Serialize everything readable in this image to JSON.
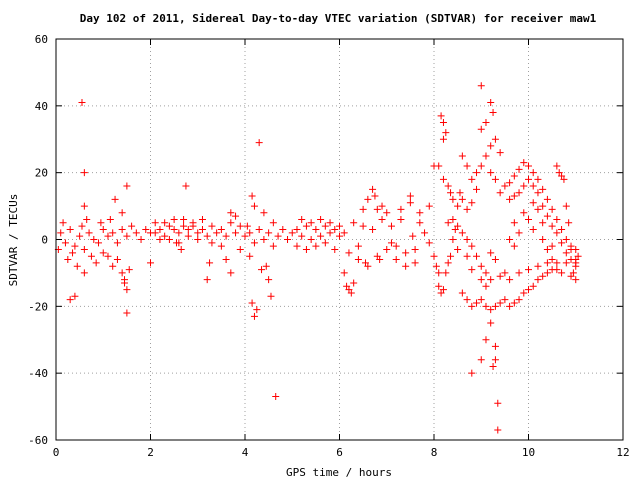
{
  "chart_data": {
    "type": "scatter",
    "title": "Day 102 of 2011, Sidereal Day-to-day VTEC variation (SDTVAR) for receiver maw1",
    "xlabel": "GPS time / hours",
    "ylabel": "SDTVAR / TECUs",
    "xlim": [
      0,
      12
    ],
    "ylim": [
      -60,
      60
    ],
    "xticks": [
      "0",
      "2",
      "4",
      "6",
      "8",
      "10",
      "12"
    ],
    "yticks": [
      "60",
      "40",
      "20",
      "0",
      "-20",
      "-40",
      "-60"
    ],
    "grid": true,
    "marker": "+",
    "color": "#ff0000",
    "points": [
      [
        0.1,
        2
      ],
      [
        0.2,
        -1
      ],
      [
        0.3,
        3
      ],
      [
        0.4,
        -2
      ],
      [
        0.5,
        1
      ],
      [
        0.6,
        -3
      ],
      [
        0.7,
        2
      ],
      [
        0.8,
        0
      ],
      [
        0.9,
        -1
      ],
      [
        1.0,
        3
      ],
      [
        0.15,
        5
      ],
      [
        0.35,
        -4
      ],
      [
        0.55,
        4
      ],
      [
        0.75,
        -5
      ],
      [
        0.95,
        5
      ],
      [
        0.25,
        -6
      ],
      [
        0.45,
        -8
      ],
      [
        0.65,
        6
      ],
      [
        0.85,
        -7
      ],
      [
        0.05,
        -3
      ],
      [
        0.3,
        -18
      ],
      [
        0.4,
        -17
      ],
      [
        0.55,
        41
      ],
      [
        0.6,
        20
      ],
      [
        0.6,
        10
      ],
      [
        0.6,
        -10
      ],
      [
        1.1,
        1
      ],
      [
        1.2,
        2
      ],
      [
        1.3,
        -1
      ],
      [
        1.4,
        3
      ],
      [
        1.5,
        1
      ],
      [
        1.6,
        4
      ],
      [
        1.7,
        2
      ],
      [
        1.8,
        0
      ],
      [
        1.9,
        3
      ],
      [
        2.0,
        2
      ],
      [
        1.1,
        -5
      ],
      [
        1.2,
        -8
      ],
      [
        1.3,
        -6
      ],
      [
        1.4,
        -10
      ],
      [
        1.45,
        -12
      ],
      [
        1.5,
        -15
      ],
      [
        1.5,
        -22
      ],
      [
        1.45,
        -13
      ],
      [
        1.5,
        16
      ],
      [
        1.25,
        12
      ],
      [
        1.4,
        8
      ],
      [
        1.55,
        -9
      ],
      [
        1.0,
        -4
      ],
      [
        1.15,
        6
      ],
      [
        2.1,
        2
      ],
      [
        2.2,
        3
      ],
      [
        2.3,
        1
      ],
      [
        2.4,
        4
      ],
      [
        2.5,
        3
      ],
      [
        2.6,
        2
      ],
      [
        2.7,
        4
      ],
      [
        2.8,
        3
      ],
      [
        2.9,
        5
      ],
      [
        3.0,
        2
      ],
      [
        2.1,
        5
      ],
      [
        2.3,
        5
      ],
      [
        2.5,
        6
      ],
      [
        2.7,
        6
      ],
      [
        2.9,
        4
      ],
      [
        2.2,
        0
      ],
      [
        2.4,
        0
      ],
      [
        2.6,
        -1
      ],
      [
        2.8,
        1
      ],
      [
        3.0,
        0
      ],
      [
        2.75,
        16
      ],
      [
        2.0,
        -7
      ],
      [
        2.65,
        -3
      ],
      [
        2.55,
        -1
      ],
      [
        3.1,
        3
      ],
      [
        3.2,
        1
      ],
      [
        3.3,
        4
      ],
      [
        3.4,
        2
      ],
      [
        3.5,
        3
      ],
      [
        3.6,
        1
      ],
      [
        3.7,
        5
      ],
      [
        3.8,
        2
      ],
      [
        3.9,
        4
      ],
      [
        4.0,
        1
      ],
      [
        3.1,
        6
      ],
      [
        3.3,
        -1
      ],
      [
        3.5,
        -2
      ],
      [
        3.7,
        8
      ],
      [
        3.9,
        -3
      ],
      [
        3.2,
        -12
      ],
      [
        3.25,
        -7
      ],
      [
        3.6,
        -6
      ],
      [
        3.7,
        -10
      ],
      [
        3.8,
        7
      ],
      [
        4.1,
        2
      ],
      [
        4.2,
        -1
      ],
      [
        4.3,
        3
      ],
      [
        4.4,
        0
      ],
      [
        4.5,
        2
      ],
      [
        4.6,
        -2
      ],
      [
        4.7,
        1
      ],
      [
        4.8,
        3
      ],
      [
        4.9,
        0
      ],
      [
        5.0,
        2
      ],
      [
        4.1,
        -5
      ],
      [
        4.15,
        -19
      ],
      [
        4.2,
        -23
      ],
      [
        4.25,
        -21
      ],
      [
        4.3,
        29
      ],
      [
        4.15,
        13
      ],
      [
        4.2,
        10
      ],
      [
        4.4,
        8
      ],
      [
        4.5,
        -12
      ],
      [
        4.55,
        -17
      ],
      [
        4.65,
        -47
      ],
      [
        4.45,
        -8
      ],
      [
        4.6,
        5
      ],
      [
        4.35,
        -9
      ],
      [
        4.05,
        4
      ],
      [
        5.1,
        3
      ],
      [
        5.2,
        1
      ],
      [
        5.3,
        4
      ],
      [
        5.4,
        0
      ],
      [
        5.5,
        3
      ],
      [
        5.6,
        1
      ],
      [
        5.7,
        4
      ],
      [
        5.8,
        2
      ],
      [
        5.9,
        3
      ],
      [
        6.0,
        1
      ],
      [
        5.1,
        -2
      ],
      [
        5.3,
        -3
      ],
      [
        5.5,
        -2
      ],
      [
        5.7,
        -1
      ],
      [
        5.9,
        -3
      ],
      [
        5.2,
        6
      ],
      [
        5.4,
        5
      ],
      [
        5.6,
        6
      ],
      [
        5.8,
        5
      ],
      [
        6.0,
        4
      ],
      [
        6.1,
        2
      ],
      [
        6.2,
        -4
      ],
      [
        6.3,
        5
      ],
      [
        6.4,
        -6
      ],
      [
        6.5,
        4
      ],
      [
        6.6,
        -8
      ],
      [
        6.7,
        3
      ],
      [
        6.8,
        -5
      ],
      [
        6.9,
        6
      ],
      [
        7.0,
        -3
      ],
      [
        6.1,
        -10
      ],
      [
        6.15,
        -14
      ],
      [
        6.2,
        -15
      ],
      [
        6.3,
        -13
      ],
      [
        6.25,
        -16
      ],
      [
        6.5,
        9
      ],
      [
        6.6,
        12
      ],
      [
        6.7,
        15
      ],
      [
        6.75,
        13
      ],
      [
        6.8,
        9
      ],
      [
        6.9,
        10
      ],
      [
        7.0,
        8
      ],
      [
        6.4,
        -2
      ],
      [
        6.55,
        -7
      ],
      [
        6.85,
        -6
      ],
      [
        7.1,
        4
      ],
      [
        7.2,
        -2
      ],
      [
        7.3,
        9
      ],
      [
        7.4,
        -4
      ],
      [
        7.5,
        11
      ],
      [
        7.6,
        -3
      ],
      [
        7.7,
        8
      ],
      [
        7.8,
        2
      ],
      [
        7.9,
        10
      ],
      [
        7.5,
        13
      ],
      [
        7.2,
        -6
      ],
      [
        7.4,
        -8
      ],
      [
        7.6,
        -7
      ],
      [
        7.3,
        6
      ],
      [
        7.7,
        5
      ],
      [
        7.1,
        -1
      ],
      [
        7.9,
        -1
      ],
      [
        7.55,
        1
      ],
      [
        8.0,
        -5
      ],
      [
        8.05,
        -8
      ],
      [
        8.1,
        -10
      ],
      [
        8.0,
        22
      ],
      [
        8.1,
        22
      ],
      [
        8.15,
        37
      ],
      [
        8.2,
        35
      ],
      [
        8.25,
        32
      ],
      [
        8.2,
        30
      ],
      [
        8.1,
        -14
      ],
      [
        8.15,
        -16
      ],
      [
        8.2,
        -15
      ],
      [
        8.25,
        -10
      ],
      [
        8.3,
        -7
      ],
      [
        8.35,
        -5
      ],
      [
        8.4,
        0
      ],
      [
        8.45,
        3
      ],
      [
        8.5,
        -3
      ],
      [
        8.2,
        18
      ],
      [
        8.3,
        16
      ],
      [
        8.35,
        14
      ],
      [
        8.4,
        12
      ],
      [
        8.5,
        10
      ],
      [
        8.55,
        14
      ],
      [
        8.6,
        12
      ],
      [
        8.7,
        9
      ],
      [
        8.8,
        11
      ],
      [
        8.9,
        15
      ],
      [
        8.3,
        5
      ],
      [
        8.4,
        6
      ],
      [
        8.5,
        4
      ],
      [
        8.6,
        2
      ],
      [
        8.7,
        0
      ],
      [
        8.8,
        -2
      ],
      [
        8.9,
        -5
      ],
      [
        9.0,
        -8
      ],
      [
        9.1,
        -10
      ],
      [
        9.2,
        -12
      ],
      [
        8.6,
        -16
      ],
      [
        8.7,
        -18
      ],
      [
        8.8,
        -20
      ],
      [
        8.9,
        -19
      ],
      [
        9.0,
        -18
      ],
      [
        9.1,
        -20
      ],
      [
        9.2,
        -21
      ],
      [
        9.3,
        -20
      ],
      [
        9.4,
        -19
      ],
      [
        9.5,
        -18
      ],
      [
        8.6,
        25
      ],
      [
        8.7,
        22
      ],
      [
        8.8,
        18
      ],
      [
        8.9,
        20
      ],
      [
        9.0,
        22
      ],
      [
        9.1,
        25
      ],
      [
        9.2,
        20
      ],
      [
        9.3,
        18
      ],
      [
        9.4,
        14
      ],
      [
        9.5,
        16
      ],
      [
        8.7,
        -5
      ],
      [
        8.8,
        -9
      ],
      [
        9.0,
        -12
      ],
      [
        9.1,
        -14
      ],
      [
        9.2,
        -4
      ],
      [
        9.3,
        -6
      ],
      [
        9.4,
        -11
      ],
      [
        9.5,
        -10
      ],
      [
        8.8,
        -40
      ],
      [
        9.0,
        -36
      ],
      [
        9.1,
        -30
      ],
      [
        9.2,
        -25
      ],
      [
        9.3,
        -32
      ],
      [
        9.35,
        -49
      ],
      [
        9.35,
        -57
      ],
      [
        9.3,
        -36
      ],
      [
        9.25,
        -38
      ],
      [
        9.0,
        46
      ],
      [
        9.2,
        41
      ],
      [
        9.25,
        38
      ],
      [
        9.1,
        35
      ],
      [
        9.0,
        33
      ],
      [
        9.2,
        28
      ],
      [
        9.3,
        30
      ],
      [
        9.4,
        26
      ],
      [
        9.6,
        17
      ],
      [
        9.7,
        19
      ],
      [
        9.8,
        21
      ],
      [
        9.9,
        23
      ],
      [
        10.0,
        22
      ],
      [
        10.1,
        20
      ],
      [
        10.2,
        18
      ],
      [
        10.3,
        15
      ],
      [
        10.4,
        12
      ],
      [
        10.5,
        9
      ],
      [
        9.6,
        12
      ],
      [
        9.7,
        13
      ],
      [
        9.8,
        14
      ],
      [
        9.9,
        16
      ],
      [
        10.0,
        18
      ],
      [
        10.1,
        16
      ],
      [
        10.2,
        14
      ],
      [
        10.3,
        10
      ],
      [
        10.4,
        7
      ],
      [
        10.5,
        4
      ],
      [
        10.6,
        6
      ],
      [
        10.7,
        3
      ],
      [
        10.8,
        0
      ],
      [
        10.9,
        -3
      ],
      [
        11.0,
        -6
      ],
      [
        10.6,
        2
      ],
      [
        10.7,
        -1
      ],
      [
        10.8,
        -4
      ],
      [
        10.9,
        -6
      ],
      [
        11.0,
        -8
      ],
      [
        9.6,
        -20
      ],
      [
        9.7,
        -19
      ],
      [
        9.8,
        -18
      ],
      [
        9.9,
        -16
      ],
      [
        10.0,
        -15
      ],
      [
        10.1,
        -14
      ],
      [
        10.2,
        -12
      ],
      [
        10.3,
        -11
      ],
      [
        10.4,
        -10
      ],
      [
        10.5,
        -9
      ],
      [
        9.6,
        -12
      ],
      [
        9.8,
        -10
      ],
      [
        10.0,
        -9
      ],
      [
        10.2,
        -8
      ],
      [
        10.4,
        -7
      ],
      [
        10.6,
        -7
      ],
      [
        10.8,
        -7
      ],
      [
        11.0,
        -7
      ],
      [
        9.7,
        5
      ],
      [
        9.9,
        8
      ],
      [
        10.0,
        6
      ],
      [
        10.1,
        11
      ],
      [
        10.2,
        9
      ],
      [
        10.3,
        5
      ],
      [
        10.4,
        -3
      ],
      [
        10.5,
        -6
      ],
      [
        10.6,
        -9
      ],
      [
        10.7,
        -10
      ],
      [
        10.6,
        22
      ],
      [
        10.65,
        20
      ],
      [
        10.7,
        19
      ],
      [
        10.75,
        18
      ],
      [
        10.8,
        10
      ],
      [
        10.85,
        5
      ],
      [
        10.9,
        -2
      ],
      [
        10.95,
        -10
      ],
      [
        11.0,
        -3
      ],
      [
        11.05,
        -5
      ],
      [
        9.6,
        0
      ],
      [
        9.7,
        -2
      ],
      [
        9.8,
        2
      ],
      [
        10.1,
        3
      ],
      [
        10.3,
        0
      ],
      [
        10.5,
        -2
      ],
      [
        10.9,
        -11
      ],
      [
        11.0,
        -12
      ]
    ]
  }
}
